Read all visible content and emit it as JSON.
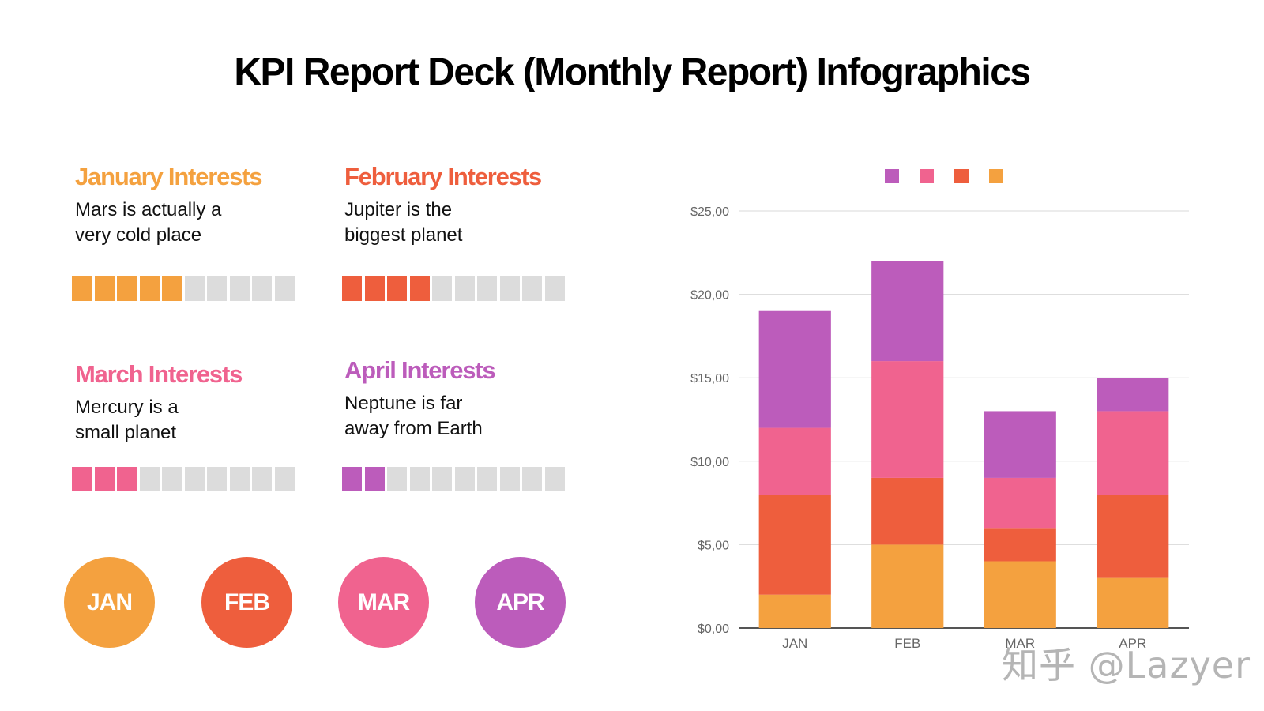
{
  "page": {
    "title": "KPI Report Deck (Monthly Report) Infographics"
  },
  "kpis": [
    {
      "heading": "January Interests",
      "line1": "Mars is actually a",
      "line2": "very cold place",
      "filled": 5,
      "total": 10,
      "color": "#f4a13f"
    },
    {
      "heading": "February Interests",
      "line1": "Jupiter is the",
      "line2": "biggest planet",
      "filled": 4,
      "total": 10,
      "color": "#ee5e3d"
    },
    {
      "heading": "March Interests",
      "line1": "Mercury is a",
      "line2": "small planet",
      "filled": 3,
      "total": 10,
      "color": "#f0638f"
    },
    {
      "heading": "April Interests",
      "line1": "Neptune is far",
      "line2": "away from Earth",
      "filled": 2,
      "total": 10,
      "color": "#bc5cbb"
    }
  ],
  "months": [
    {
      "label": "JAN",
      "color": "#f4a13f"
    },
    {
      "label": "FEB",
      "color": "#ee5e3d"
    },
    {
      "label": "MAR",
      "color": "#f0638f"
    },
    {
      "label": "APR",
      "color": "#bc5cbb"
    }
  ],
  "watermark": "知乎 @Lazyer",
  "chart_data": {
    "type": "bar",
    "stacked": true,
    "categories": [
      "JAN",
      "FEB",
      "MAR",
      "APR"
    ],
    "series": [
      {
        "values": [
          2,
          5,
          4,
          3
        ],
        "color": "#f4a13f"
      },
      {
        "values": [
          6,
          4,
          2,
          5
        ],
        "color": "#ee5e3d"
      },
      {
        "values": [
          4,
          7,
          3,
          5
        ],
        "color": "#f0638f"
      },
      {
        "values": [
          7,
          6,
          4,
          2
        ],
        "color": "#bc5cbb"
      }
    ],
    "legend_colors": [
      "#bc5cbb",
      "#f0638f",
      "#ee5e3d",
      "#f4a13f"
    ],
    "legend_position": "top",
    "yticks": [
      0,
      5,
      10,
      15,
      20,
      25
    ],
    "ytick_labels": [
      "$0,00",
      "$5,00",
      "$10,00",
      "$15,00",
      "$20,00",
      "$25,00"
    ],
    "ylim": [
      0,
      25
    ],
    "grid": true
  }
}
